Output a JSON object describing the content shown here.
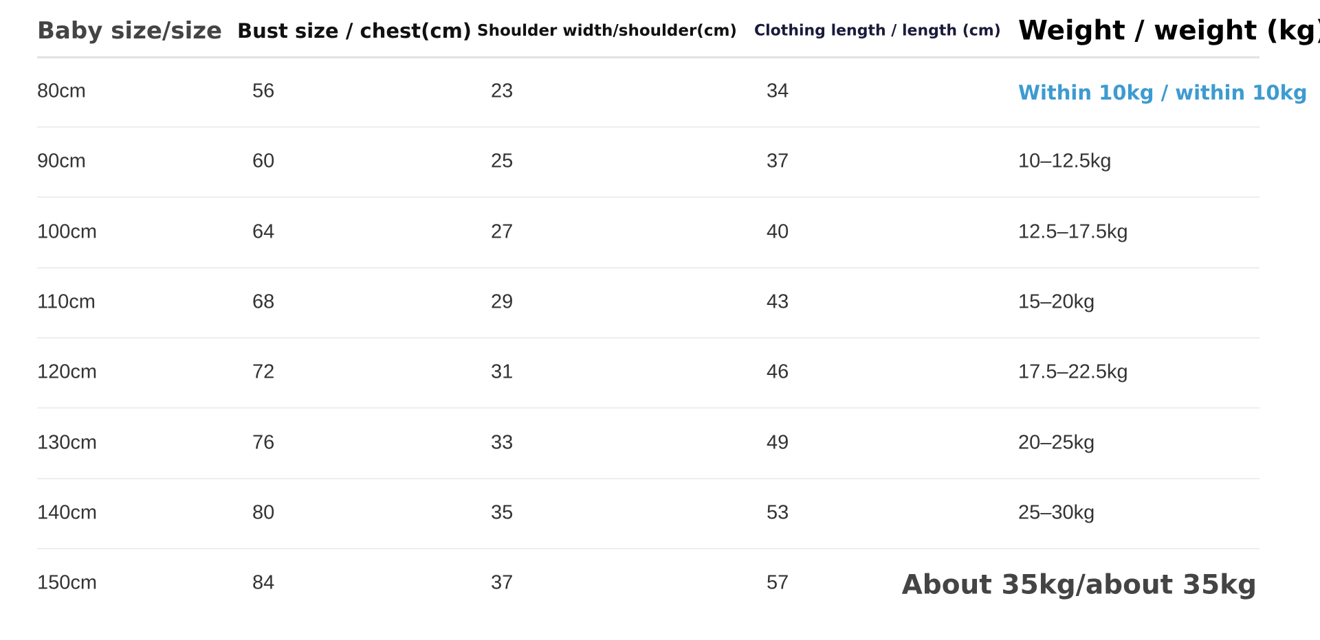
{
  "table": {
    "header": [
      "Baby size/size",
      "Bust size / chest(cm)",
      "Shoulder width/shoulder(cm)",
      "Clothing length / length (cm)",
      "Weight / weight (kg)"
    ],
    "rows": [
      [
        "80cm",
        56,
        23,
        34,
        "Within 10kg / within 10kg"
      ],
      [
        "90cm",
        60,
        25,
        37,
        "10–12.5kg"
      ],
      [
        "100cm",
        64,
        27,
        40,
        "12.5–17.5kg"
      ],
      [
        "110cm",
        68,
        29,
        43,
        "15–20kg"
      ],
      [
        "120cm",
        72,
        31,
        46,
        "17.5–22.5kg"
      ],
      [
        "130cm",
        76,
        33,
        49,
        "20–25kg"
      ],
      [
        "140cm",
        80,
        35,
        53,
        "25–30kg"
      ],
      [
        "150cm",
        84,
        37,
        57,
        "About 35kg/about 35kg"
      ]
    ]
  }
}
